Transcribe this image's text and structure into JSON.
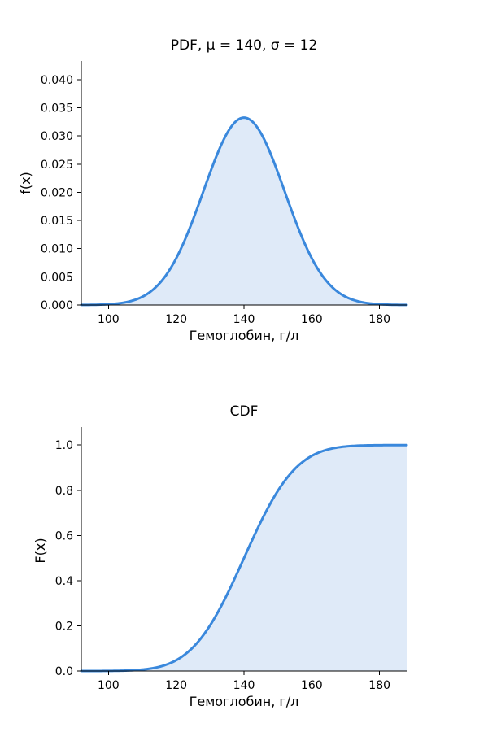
{
  "chart_data": [
    {
      "type": "area",
      "title": "PDF, μ = 140, σ = 12",
      "xlabel": "Гемоглобин, г/л",
      "ylabel": "f(x)",
      "mu": 140,
      "sigma": 12,
      "xlim": [
        92,
        188
      ],
      "ylim": [
        0,
        0.0433
      ],
      "xticks": [
        100,
        120,
        140,
        160,
        180
      ],
      "yticks": [
        "0.000",
        "0.005",
        "0.010",
        "0.015",
        "0.020",
        "0.025",
        "0.030",
        "0.035",
        "0.040"
      ],
      "grid": false,
      "x": [
        92,
        96,
        100,
        104,
        108,
        112,
        116,
        120,
        124,
        128,
        132,
        136,
        140,
        144,
        148,
        152,
        156,
        160,
        164,
        168,
        172,
        176,
        180,
        184,
        188
      ],
      "y": [
        0.00011,
        0.00034,
        0.00092,
        0.00223,
        0.00474,
        0.00889,
        0.01468,
        0.02133,
        0.02725,
        0.03066,
        0.03035,
        0.0313,
        0.03324,
        0.0313,
        0.02596,
        0.02015,
        0.01368,
        0.00856,
        0.0046,
        0.00214,
        0.00093,
        0.00031,
        0.00012,
        4e-05,
        1e-05
      ]
    },
    {
      "type": "area",
      "title": "CDF",
      "xlabel": "Гемоглобин, г/л",
      "ylabel": "F(x)",
      "mu": 140,
      "sigma": 12,
      "xlim": [
        92,
        188
      ],
      "ylim": [
        0,
        1.08
      ],
      "xticks": [
        100,
        120,
        140,
        160,
        180
      ],
      "yticks": [
        "0.0",
        "0.2",
        "0.4",
        "0.6",
        "0.8",
        "1.0"
      ],
      "grid": false,
      "x": [
        92,
        100,
        108,
        116,
        120,
        124,
        128,
        132,
        136,
        140,
        144,
        148,
        152,
        156,
        160,
        168,
        176,
        188
      ],
      "y": [
        3e-05,
        0.00043,
        0.00383,
        0.02275,
        0.04779,
        0.09121,
        0.15866,
        0.25249,
        0.36944,
        0.5,
        0.63056,
        0.74751,
        0.84134,
        0.90879,
        0.95221,
        0.99018,
        0.99865,
        0.99997
      ]
    }
  ],
  "colors": {
    "line": "#3a88dc",
    "fill": "#dfeaf8"
  }
}
